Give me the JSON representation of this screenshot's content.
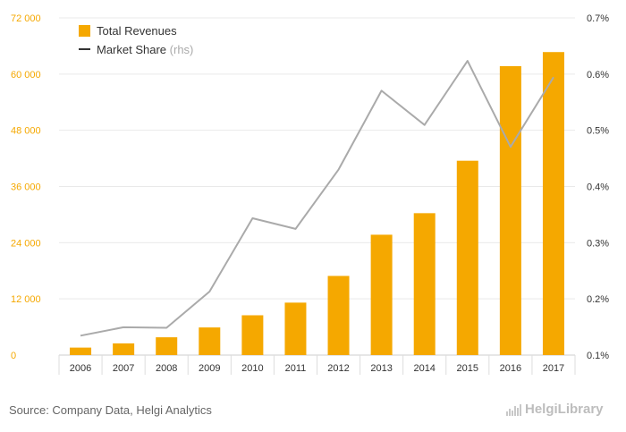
{
  "chart_data": {
    "type": "bar",
    "categories": [
      "2006",
      "2007",
      "2008",
      "2009",
      "2010",
      "2011",
      "2012",
      "2013",
      "2014",
      "2015",
      "2016",
      "2017"
    ],
    "series": [
      {
        "name": "Total Revenues",
        "type": "bar",
        "axis": "left",
        "color": "#f5a800",
        "values": [
          1600,
          2500,
          3800,
          5900,
          8500,
          11200,
          16900,
          25700,
          30300,
          41500,
          61700,
          64700
        ]
      },
      {
        "name": "Market Share",
        "name_suffix": "(rhs)",
        "type": "line",
        "axis": "right",
        "color": "#aaaaaa",
        "values": [
          0.1345,
          0.1495,
          0.1485,
          0.213,
          0.3435,
          0.3245,
          0.43,
          0.5705,
          0.5095,
          0.6235,
          0.4705,
          0.5945
        ]
      }
    ],
    "y_left": {
      "min": 0,
      "max": 72000,
      "ticks": [
        0,
        12000,
        24000,
        36000,
        48000,
        60000,
        72000
      ],
      "tick_labels": [
        "0",
        "12 000",
        "24 000",
        "36 000",
        "48 000",
        "60 000",
        "72 000"
      ],
      "label_color": "#f5a800"
    },
    "y_right": {
      "min": 0.1,
      "max": 0.7,
      "ticks": [
        0.1,
        0.2,
        0.3,
        0.4,
        0.5,
        0.6,
        0.7
      ],
      "tick_labels": [
        "0.1%",
        "0.2%",
        "0.3%",
        "0.4%",
        "0.5%",
        "0.6%",
        "0.7%"
      ],
      "label_color": "#333333"
    },
    "grid": true,
    "legend_position": "top-left",
    "title": "",
    "xlabel": "",
    "ylabel": ""
  },
  "footer": {
    "source": "Source: Company Data, Helgi Analytics",
    "logo_text": "HelgiLibrary"
  }
}
